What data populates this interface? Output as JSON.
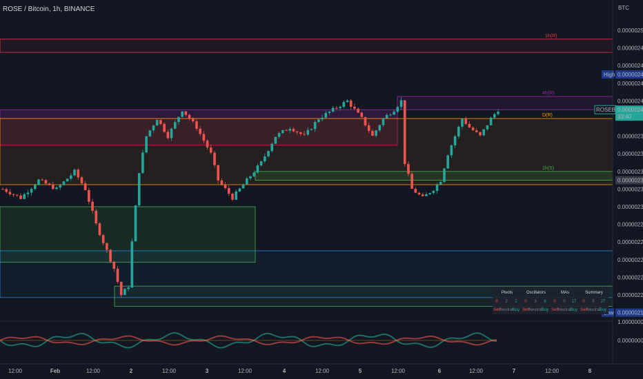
{
  "header": {
    "title": "ROSE / Bitcoin, 1h, BINANCE"
  },
  "price_axis": {
    "currency": "BTC",
    "ticks": [
      "0.00000250",
      "0.00000248",
      "0.00000246",
      "0.00000244",
      "0.00000242",
      "0.00000240",
      "0.00000238",
      "0.00000236",
      "0.00000234",
      "0.00000232",
      "0.00000230",
      "0.00000228",
      "0.00000226",
      "0.00000224",
      "0.00000222",
      "0.00000220"
    ],
    "high_label": "High",
    "high_value": "0.00000245",
    "symbol_label": "ROSEBTC",
    "symbol_price": "0.00000241",
    "countdown": "33:40",
    "marker_value": "0.00000233",
    "low_label": "Low",
    "low_value": "0.00000218",
    "osc_ticks": [
      "1.00000000",
      "0.00000000"
    ]
  },
  "time_axis": [
    "12:00",
    "Feb",
    "12:00",
    "2",
    "12:00",
    "3",
    "12:00",
    "4",
    "12:00",
    "5",
    "12:00",
    "6",
    "12:00",
    "7",
    "12:00",
    "8"
  ],
  "zones": [
    {
      "name": "1h(R)",
      "color": "#f23645"
    },
    {
      "name": "4h(R)",
      "color": "#9c27b0"
    },
    {
      "name": "D(R)",
      "color": "#ff9800"
    },
    {
      "name": "1h(S)",
      "color": "#4caf50"
    }
  ],
  "summary_table": {
    "headers": [
      "Pivots",
      "Oscillators",
      "MAs",
      "Summary"
    ],
    "groups": [
      {
        "counts": [
          "0",
          "2",
          "2"
        ]
      },
      {
        "counts": [
          "0",
          "3",
          "8"
        ]
      },
      {
        "counts": [
          "0",
          "0",
          "17"
        ]
      },
      {
        "counts": [
          "0",
          "5",
          "27"
        ]
      }
    ],
    "sub_labels": [
      "Sell",
      "Neutral",
      "Buy"
    ]
  },
  "colors": {
    "up": "#26a69a",
    "down": "#ef5350",
    "bg": "#131722"
  },
  "chart_data": {
    "type": "candlestick",
    "title": "ROSE / Bitcoin, 1h, BINANCE",
    "ylim": [
      2.17e-06,
      2.51e-06
    ],
    "high": 2.45e-06,
    "low": 2.18e-06,
    "last": 2.41e-06,
    "close_path": [
      [
        0,
        2.32e-06
      ],
      [
        5,
        2.31e-06
      ],
      [
        10,
        2.33e-06
      ],
      [
        15,
        2.32e-06
      ],
      [
        20,
        2.34e-06
      ],
      [
        23,
        2.32e-06
      ],
      [
        26,
        2.28e-06
      ],
      [
        29,
        2.25e-06
      ],
      [
        31,
        2.23e-06
      ],
      [
        33,
        2.2e-06
      ],
      [
        35,
        2.21e-06
      ],
      [
        36,
        2.26e-06
      ],
      [
        37,
        2.3e-06
      ],
      [
        38,
        2.34e-06
      ],
      [
        40,
        2.38e-06
      ],
      [
        43,
        2.4e-06
      ],
      [
        46,
        2.38e-06
      ],
      [
        50,
        2.41e-06
      ],
      [
        54,
        2.39e-06
      ],
      [
        58,
        2.36e-06
      ],
      [
        60,
        2.33e-06
      ],
      [
        64,
        2.31e-06
      ],
      [
        68,
        2.33e-06
      ],
      [
        72,
        2.35e-06
      ],
      [
        76,
        2.38e-06
      ],
      [
        80,
        2.39e-06
      ],
      [
        84,
        2.38e-06
      ],
      [
        88,
        2.4e-06
      ],
      [
        92,
        2.41e-06
      ],
      [
        96,
        2.42e-06
      ],
      [
        100,
        2.4e-06
      ],
      [
        103,
        2.38e-06
      ],
      [
        106,
        2.4e-06
      ],
      [
        109,
        2.41e-06
      ],
      [
        111,
        2.42e-06
      ],
      [
        112,
        2.35e-06
      ],
      [
        114,
        2.32e-06
      ],
      [
        117,
        2.31e-06
      ],
      [
        120,
        2.32e-06
      ],
      [
        122,
        2.33e-06
      ],
      [
        124,
        2.36e-06
      ],
      [
        126,
        2.38e-06
      ],
      [
        128,
        2.4e-06
      ],
      [
        130,
        2.39e-06
      ],
      [
        133,
        2.38e-06
      ],
      [
        136,
        2.4e-06
      ],
      [
        138,
        2.41e-06
      ]
    ],
    "time_span_hours": 138
  }
}
